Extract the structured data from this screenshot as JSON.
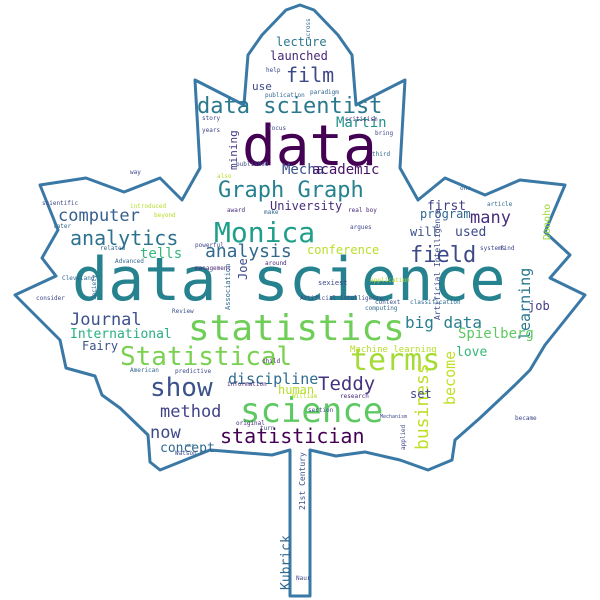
{
  "outline_color": "#3a78a6",
  "palette": [
    "#440154",
    "#482878",
    "#3e4989",
    "#31688e",
    "#26828e",
    "#1f9e89",
    "#35b779",
    "#6ece58",
    "#b5de2b",
    "#fde725"
  ],
  "words": [
    {
      "text": "data science",
      "color": "#26828e"
    },
    {
      "text": "data",
      "color": "#440154"
    },
    {
      "text": "statistics",
      "color": "#6ece58"
    },
    {
      "text": "science",
      "color": "#5ec962"
    },
    {
      "text": "Statistical",
      "color": "#7ad151"
    },
    {
      "text": "Monica",
      "color": "#1f9e89"
    },
    {
      "text": "terms",
      "color": "#a5db36"
    },
    {
      "text": "show",
      "color": "#3b528b"
    },
    {
      "text": "data scientist",
      "color": "#2a788e"
    },
    {
      "text": "Graph Graph",
      "color": "#26828e"
    },
    {
      "text": "field",
      "color": "#3e4989"
    },
    {
      "text": "analytics",
      "color": "#2c728e"
    },
    {
      "text": "statistician",
      "color": "#440154"
    },
    {
      "text": "method",
      "color": "#414487"
    },
    {
      "text": "computer",
      "color": "#355f8d"
    },
    {
      "text": "analysis",
      "color": "#31688e"
    },
    {
      "text": "business",
      "color": "#bddf26"
    },
    {
      "text": "become",
      "color": "#c2df23"
    },
    {
      "text": "Journal",
      "color": "#3b528b"
    },
    {
      "text": "Teddy",
      "color": "#46327e"
    },
    {
      "text": "film",
      "color": "#3e4989"
    },
    {
      "text": "big data",
      "color": "#277f8e"
    },
    {
      "text": "learning",
      "color": "#2a788e"
    },
    {
      "text": "many",
      "color": "#472f7d"
    },
    {
      "text": "now",
      "color": "#3e4989"
    },
    {
      "text": "Martin",
      "color": "#21918c"
    },
    {
      "text": "Mecha",
      "color": "#3b528b"
    },
    {
      "text": "academic",
      "color": "#471365"
    },
    {
      "text": "discipline",
      "color": "#2f6c8e"
    },
    {
      "text": "conference",
      "color": "#b8de29"
    },
    {
      "text": "concept",
      "color": "#31688e"
    },
    {
      "text": "Spielberg",
      "color": "#5ec962"
    },
    {
      "text": "International",
      "color": "#29af7f"
    },
    {
      "text": "University",
      "color": "#472d7b"
    },
    {
      "text": "tells",
      "color": "#34b679"
    },
    {
      "text": "first",
      "color": "#433e85"
    },
    {
      "text": "used",
      "color": "#3e4989"
    },
    {
      "text": "will",
      "color": "#3b528b"
    },
    {
      "text": "program",
      "color": "#31688e"
    },
    {
      "text": "job",
      "color": "#443983"
    },
    {
      "text": "love",
      "color": "#35b779"
    },
    {
      "text": "set",
      "color": "#3e4989"
    },
    {
      "text": "human",
      "color": "#b5de2b"
    },
    {
      "text": "Fairy",
      "color": "#3b528b"
    },
    {
      "text": "lecture",
      "color": "#2a788e"
    },
    {
      "text": "launched",
      "color": "#482878"
    },
    {
      "text": "use",
      "color": "#3e4989"
    },
    {
      "text": "mining",
      "color": "#433e85"
    },
    {
      "text": "Kubrick",
      "color": "#31688e"
    },
    {
      "text": "Joe",
      "color": "#3e4989"
    },
    {
      "text": "Donoho",
      "color": "#a0da39"
    },
    {
      "text": "Machine learning",
      "color": "#b5de2b"
    },
    {
      "text": "Artificial Intelligence",
      "color": "#3e4989"
    },
    {
      "text": "21st Century",
      "color": "#3b528b"
    },
    {
      "text": "Association",
      "color": "#31688e"
    },
    {
      "text": "sexiest",
      "color": "#3e4989"
    },
    {
      "text": "Society",
      "color": "#31688e"
    },
    {
      "text": "computing",
      "color": "#31688e"
    },
    {
      "text": "context",
      "color": "#3b528b"
    },
    {
      "text": "classification",
      "color": "#31688e"
    },
    {
      "text": "systems",
      "color": "#3e4989"
    },
    {
      "text": "research",
      "color": "#482878"
    },
    {
      "text": "applied",
      "color": "#3e4989"
    },
    {
      "text": "William",
      "color": "#b5de2b"
    },
    {
      "text": "predictive",
      "color": "#3e4989"
    },
    {
      "text": "information",
      "color": "#482878"
    },
    {
      "text": "American",
      "color": "#31688e"
    },
    {
      "text": "Cleveland",
      "color": "#31688e"
    },
    {
      "text": "Review",
      "color": "#3b528b"
    },
    {
      "text": "Advanced",
      "color": "#31688e"
    },
    {
      "text": "powerful",
      "color": "#3e4989"
    },
    {
      "text": "related",
      "color": "#31688e"
    },
    {
      "text": "consider",
      "color": "#3e4989"
    },
    {
      "text": "scientific",
      "color": "#3e4989"
    },
    {
      "text": "later",
      "color": "#31688e"
    },
    {
      "text": "award",
      "color": "#482878"
    },
    {
      "text": "published",
      "color": "#3e4989"
    },
    {
      "text": "real boy",
      "color": "#482878"
    },
    {
      "text": "argues",
      "color": "#3e4989"
    },
    {
      "text": "article",
      "color": "#31688e"
    },
    {
      "text": "find",
      "color": "#3e4989"
    },
    {
      "text": "third",
      "color": "#31688e"
    },
    {
      "text": "bring",
      "color": "#3e4989"
    },
    {
      "text": "criticism",
      "color": "#482878"
    },
    {
      "text": "story",
      "color": "#3e4989"
    },
    {
      "text": "years",
      "color": "#3e4989"
    },
    {
      "text": "paradigm",
      "color": "#31688e"
    },
    {
      "text": "publication",
      "color": "#31688e"
    },
    {
      "text": "around",
      "color": "#482878"
    },
    {
      "text": "Naur",
      "color": "#3e4989"
    },
    {
      "text": "child",
      "color": "#482878"
    },
    {
      "text": "original",
      "color": "#482878"
    },
    {
      "text": "Watson",
      "color": "#3e4989"
    },
    {
      "text": "section",
      "color": "#3e4989"
    },
    {
      "text": "introduced",
      "color": "#b5de2b"
    },
    {
      "text": "beyond",
      "color": "#b5de2b"
    },
    {
      "text": "way",
      "color": "#3e4989"
    },
    {
      "text": "one",
      "color": "#31688e"
    },
    {
      "text": "across",
      "color": "#31688e"
    },
    {
      "text": "help",
      "color": "#3e4989"
    },
    {
      "text": "make",
      "color": "#31688e"
    },
    {
      "text": "focus",
      "color": "#3e4989"
    },
    {
      "text": "also",
      "color": "#b5de2b"
    },
    {
      "text": "management",
      "color": "#482878"
    },
    {
      "text": "application",
      "color": "#b5de2b"
    },
    {
      "text": "became",
      "color": "#3e4989"
    },
    {
      "text": "turn",
      "color": "#3e4989"
    },
    {
      "text": "war",
      "color": "#31688e"
    },
    {
      "text": "Mechanism",
      "color": "#3e4989"
    },
    {
      "text": "Artificial Intelligence",
      "color": "#3e4989"
    }
  ]
}
